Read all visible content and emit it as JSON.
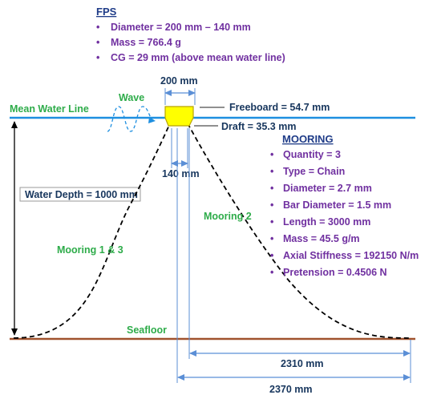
{
  "fps": {
    "heading": "FPS",
    "items": [
      "Diameter  = 200 mm – 140 mm",
      "Mass = 766.4 g",
      "CG = 29 mm (above mean water line)"
    ]
  },
  "mooring": {
    "heading": "MOORING",
    "items": [
      "Quantity = 3",
      "Type = Chain",
      "Diameter = 2.7 mm",
      "Bar Diameter = 1.5 mm",
      "Length = 3000 mm",
      "Mass = 45.5 g/m",
      "Axial Stiffness = 192150 N/m",
      "Pretension = 0.4506 N"
    ]
  },
  "labels": {
    "wave": "Wave",
    "mean_water_line": "Mean Water Line",
    "freeboard": "Freeboard = 54.7 mm",
    "draft": "Draft = 35.3 mm",
    "top_diameter": "200 mm",
    "bottom_diameter": "140 mm",
    "water_depth": "Water Depth = 1000 mm",
    "mooring_13": "Mooring 1 & 3",
    "mooring_2": "Mooring 2",
    "seafloor": "Seafloor",
    "span_2310": "2310 mm",
    "span_2370": "2370 mm"
  },
  "colors": {
    "heading_blue": "#1f3c88",
    "spec_purple": "#7030a0",
    "label_green": "#2eac4a",
    "water_line": "#1e8fe0",
    "seafloor": "#a0522d",
    "dimension": "#5b8fd6",
    "float_fill": "#ffff00",
    "float_stroke": "#b8a400"
  }
}
